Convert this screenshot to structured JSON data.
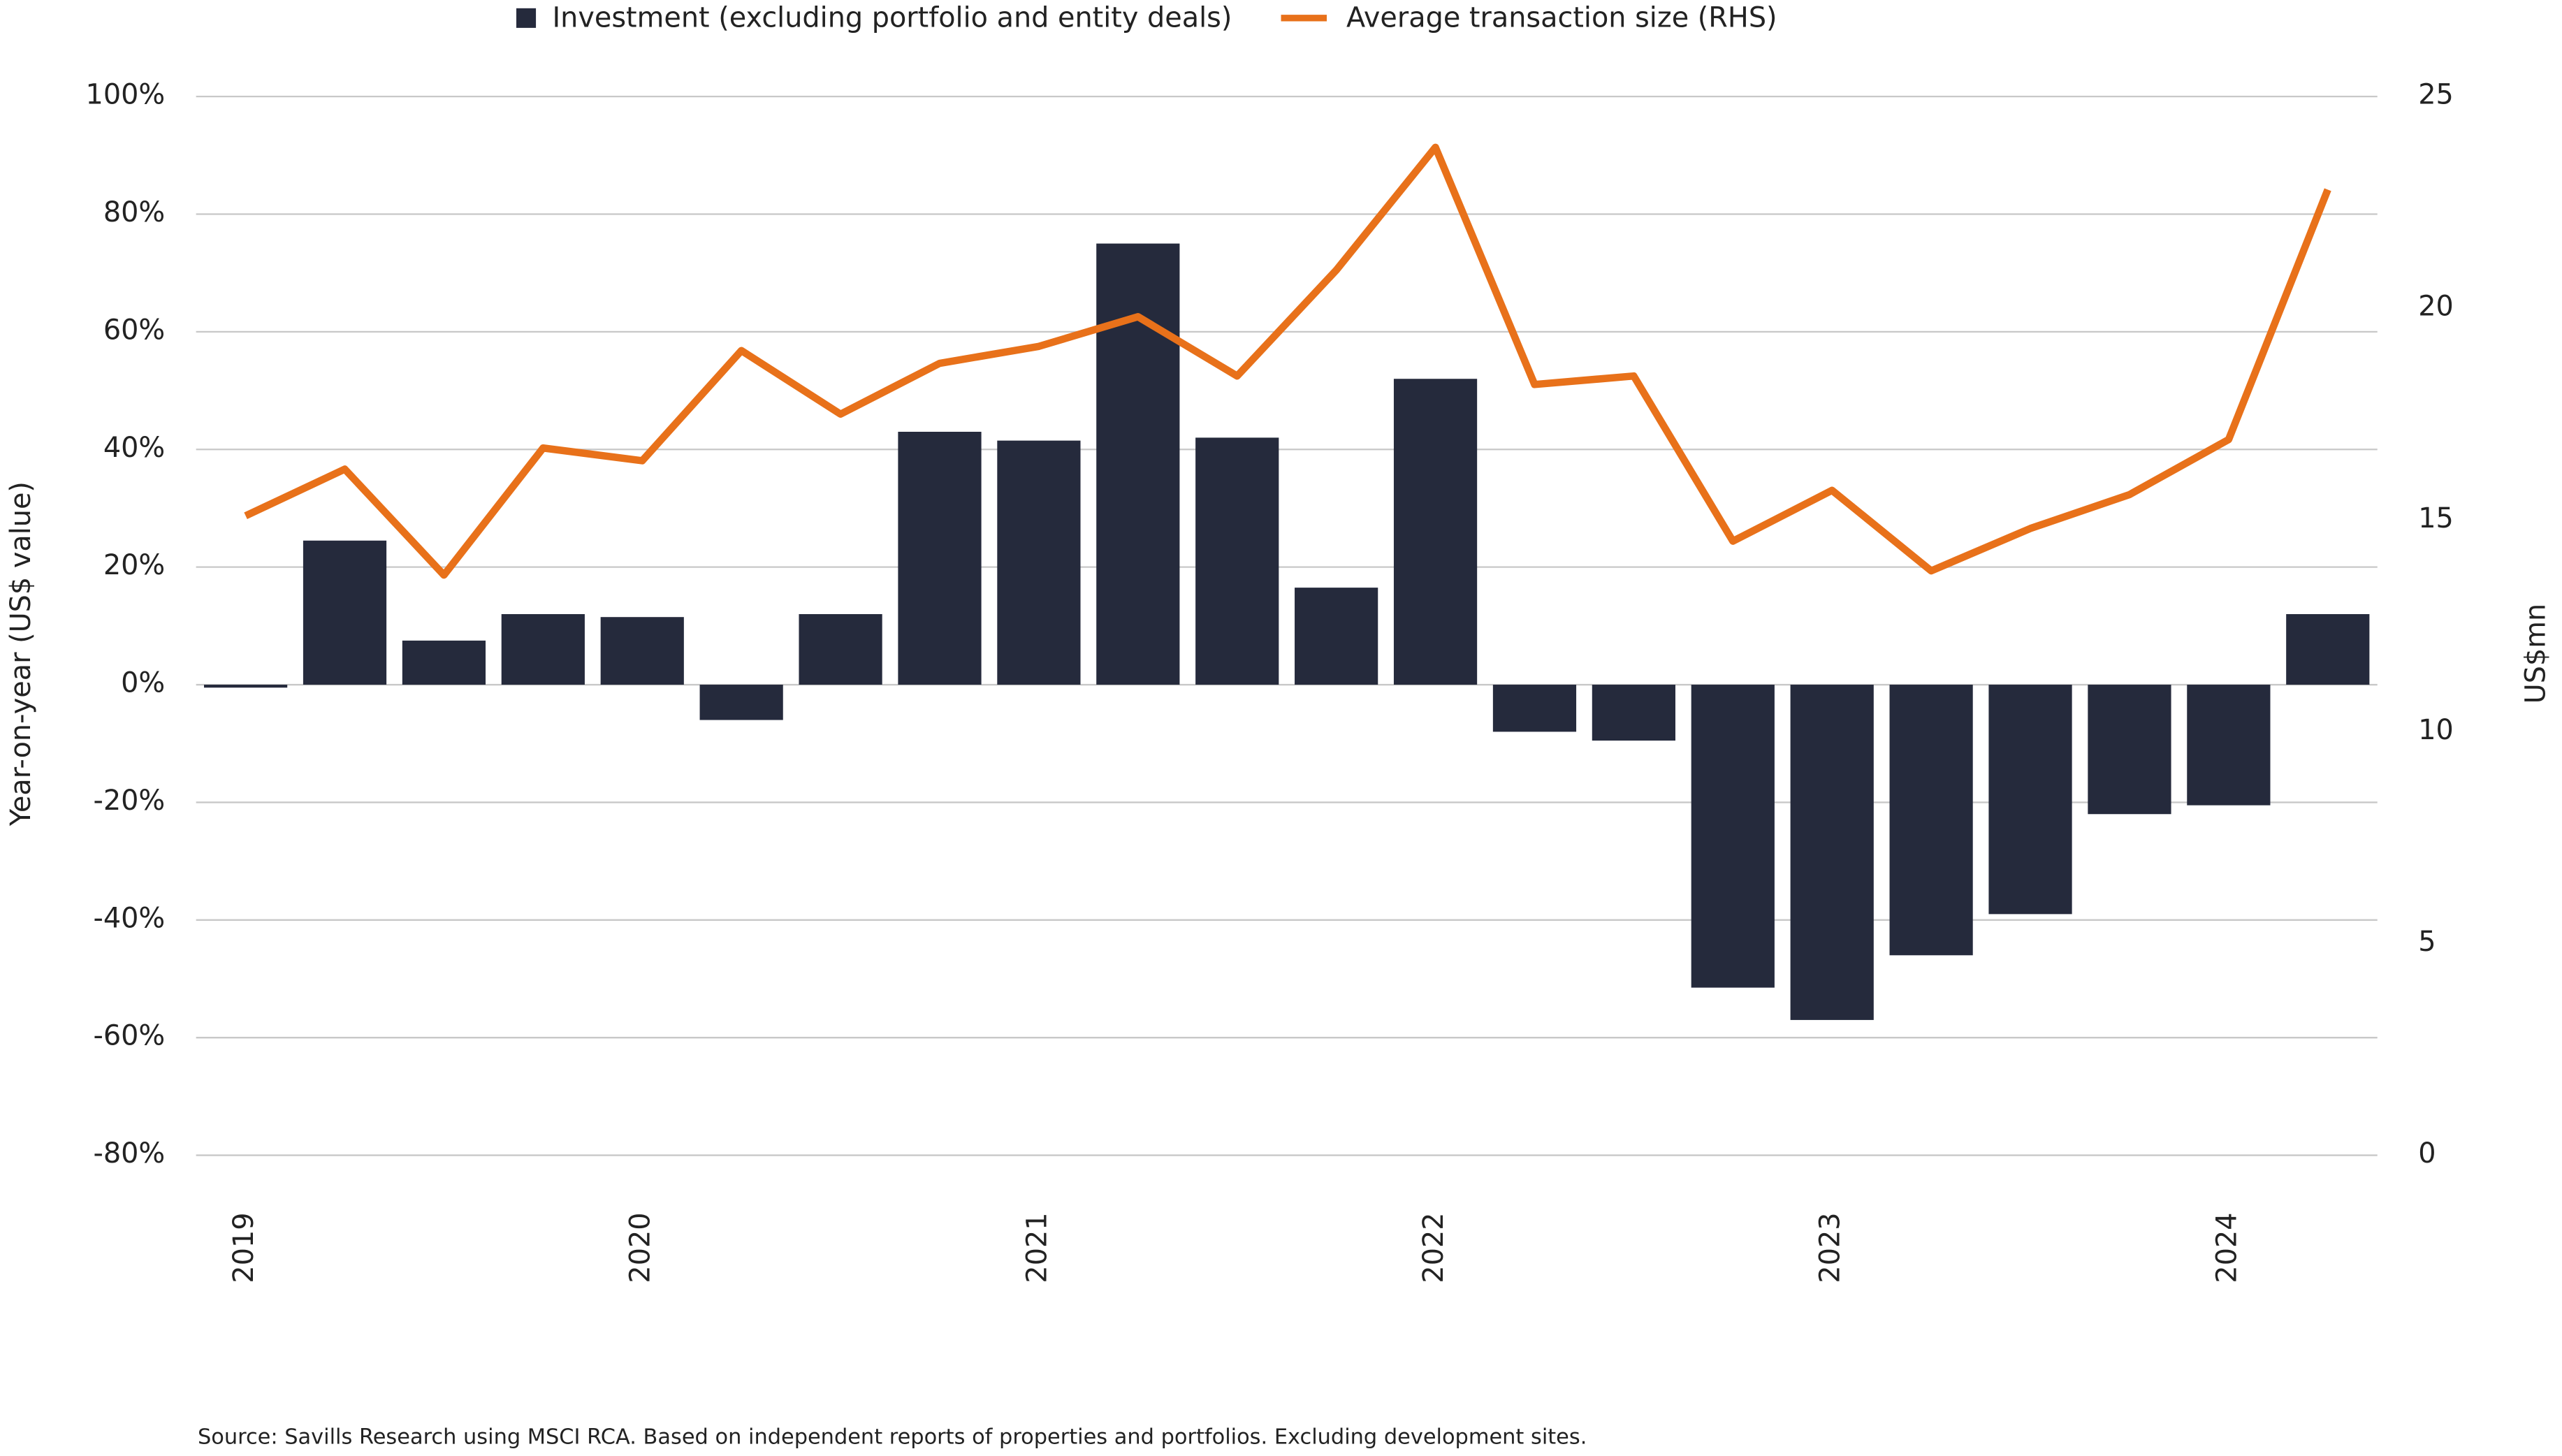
{
  "chart_data": {
    "type": "bar-line",
    "source": "Source: Savills Research using MSCI RCA. Based on independent reports of properties and portfolios. Excluding development sites.",
    "y_label": "Year-on-year (US$ value)",
    "y2_label": "US$mn",
    "categories": [
      "2019",
      null,
      null,
      null,
      "2020",
      null,
      null,
      null,
      "2021",
      null,
      null,
      null,
      "2022",
      null,
      null,
      null,
      "2023",
      null,
      null,
      null,
      "2024",
      null
    ],
    "series": [
      {
        "name": "Investment (excluding portfolio and entity deals)",
        "type": "bar",
        "color": "#252a3c",
        "values": [
          -0.5,
          24.5,
          7.5,
          12,
          11.5,
          -6,
          12,
          43,
          41.5,
          75,
          42,
          16.5,
          52,
          -8,
          -9.5,
          -51.5,
          -57,
          -46,
          -39,
          -22,
          -20.5,
          12
        ]
      },
      {
        "name": "Average transaction size (RHS)",
        "type": "line",
        "axis": "y2",
        "color": "#e8711a",
        "values": [
          15.1,
          16.2,
          13.7,
          16.7,
          16.4,
          19.0,
          17.5,
          18.7,
          19.1,
          19.8,
          18.4,
          20.9,
          23.8,
          18.2,
          18.4,
          14.5,
          15.7,
          13.8,
          14.8,
          15.6,
          16.9,
          22.8
        ]
      }
    ],
    "ylim": [
      -80,
      100
    ],
    "yticks": [
      {
        "value": -80,
        "label": "-80%"
      },
      {
        "value": -60,
        "label": "-60%"
      },
      {
        "value": -40,
        "label": "-40%"
      },
      {
        "value": -20,
        "label": "-20%"
      },
      {
        "value": 0,
        "label": "0%"
      },
      {
        "value": 20,
        "label": "20%"
      },
      {
        "value": 40,
        "label": "40%"
      },
      {
        "value": 60,
        "label": "60%"
      },
      {
        "value": 80,
        "label": "80%"
      },
      {
        "value": 100,
        "label": "100%"
      }
    ],
    "y2lim": [
      0,
      25
    ],
    "y2ticks": [
      0,
      5,
      10,
      15,
      20,
      25
    ],
    "grid": true,
    "legend": "top"
  }
}
